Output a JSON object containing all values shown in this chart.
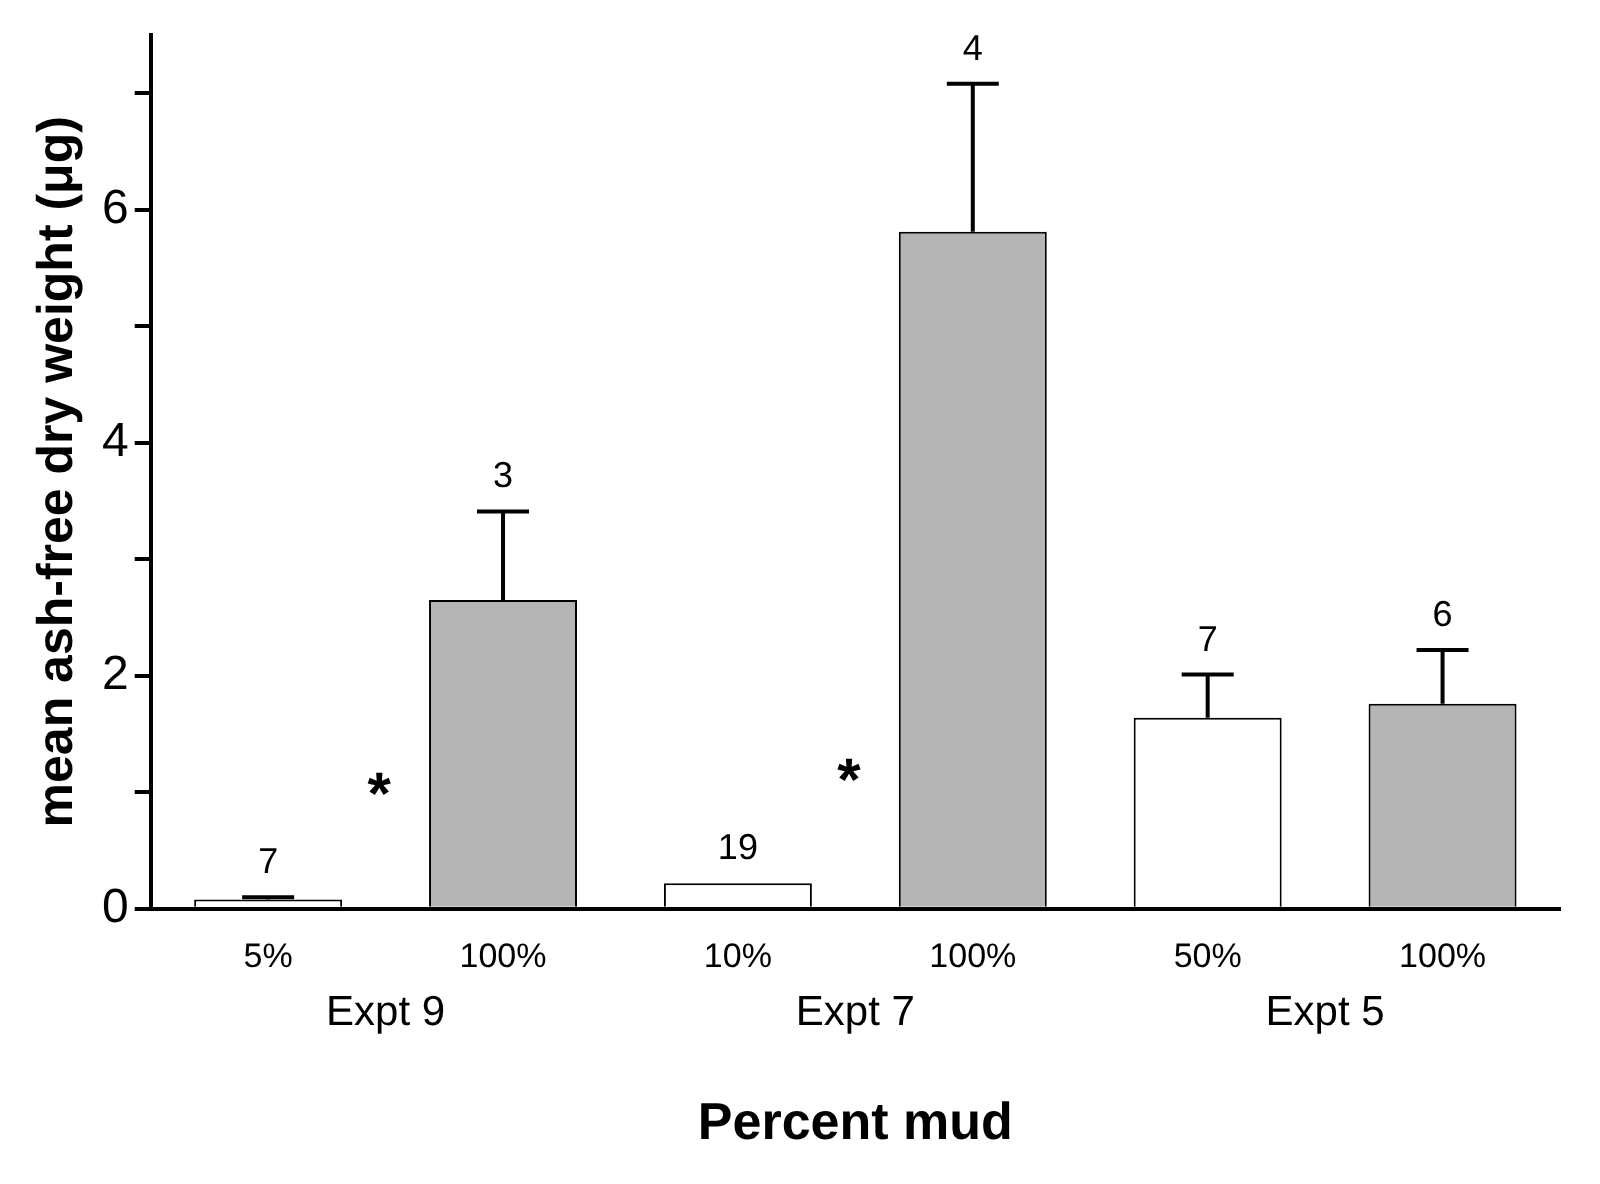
{
  "chart_data": {
    "type": "bar",
    "xlabel": "Percent mud",
    "ylabel": "mean ash-free dry weight (μg)",
    "categories": [
      "5%",
      "100%",
      "10%",
      "100%",
      "50%",
      "100%"
    ],
    "values": [
      0.08,
      2.65,
      0.22,
      5.81,
      1.64,
      1.76
    ],
    "colors": [
      "#ffffff",
      "#b4b4b4",
      "#ffffff",
      "#b4b4b4",
      "#ffffff",
      "#b4b4b4"
    ],
    "errors": [
      [
        0.08,
        0.1
      ],
      [
        2.65,
        3.41
      ],
      null,
      [
        5.81,
        7.08
      ],
      [
        1.64,
        2.01
      ],
      [
        1.76,
        2.22
      ]
    ],
    "ylim": [
      0,
      7.5
    ],
    "yticks": [
      0,
      {
        "value": 1,
        "label": null
      },
      2,
      {
        "value": 3,
        "label": null
      },
      4,
      {
        "value": 5,
        "label": null
      },
      6,
      {
        "value": 7,
        "label": null
      }
    ],
    "annotations": [
      "7",
      "3",
      "19",
      "4",
      "7",
      "6",
      "*",
      "*",
      "Expt 9",
      "Expt 7",
      "Expt 5"
    ],
    "grid": false,
    "legend": false
  }
}
